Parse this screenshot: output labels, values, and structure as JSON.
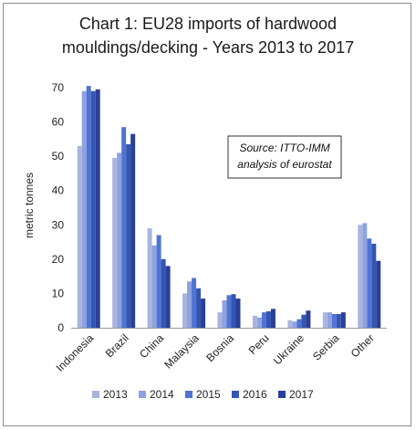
{
  "chart_data": {
    "type": "bar",
    "title_line1": "Chart 1: EU28 imports of hardwood",
    "title_line2": "mouldings/decking - Years 2013 to 2017",
    "ylabel": "metric tonnes",
    "xlabel": "",
    "ylim": [
      0,
      70
    ],
    "yticks": [
      0,
      10,
      20,
      30,
      40,
      50,
      60,
      70
    ],
    "grid": false,
    "legend_position": "bottom",
    "source_line1": "Source: ITTO-IMM",
    "source_line2": "analysis of eurostat",
    "categories": [
      "Indonesia",
      "Brazil",
      "China",
      "Malaysia",
      "Bosnia",
      "Peru",
      "Ukraine",
      "Serbia",
      "Other"
    ],
    "series": [
      {
        "name": "2013",
        "color": "#aab5de",
        "values": [
          53,
          49.5,
          29,
          10,
          4.5,
          3.5,
          2.2,
          4.5,
          30
        ]
      },
      {
        "name": "2014",
        "color": "#8fa2df",
        "values": [
          69,
          51,
          24,
          13.5,
          8,
          3,
          1.8,
          4.5,
          30.5
        ]
      },
      {
        "name": "2015",
        "color": "#4f74d4",
        "values": [
          70.5,
          58.5,
          27,
          14.5,
          9.5,
          4.5,
          2.5,
          4,
          26
        ]
      },
      {
        "name": "2016",
        "color": "#3555b3",
        "values": [
          69,
          53.5,
          20,
          11.5,
          9.8,
          4.8,
          3.8,
          4,
          24.5
        ]
      },
      {
        "name": "2017",
        "color": "#2a3f96",
        "values": [
          69.5,
          56.5,
          18,
          8.5,
          8.5,
          5.5,
          5,
          4.5,
          19.5
        ]
      }
    ]
  }
}
